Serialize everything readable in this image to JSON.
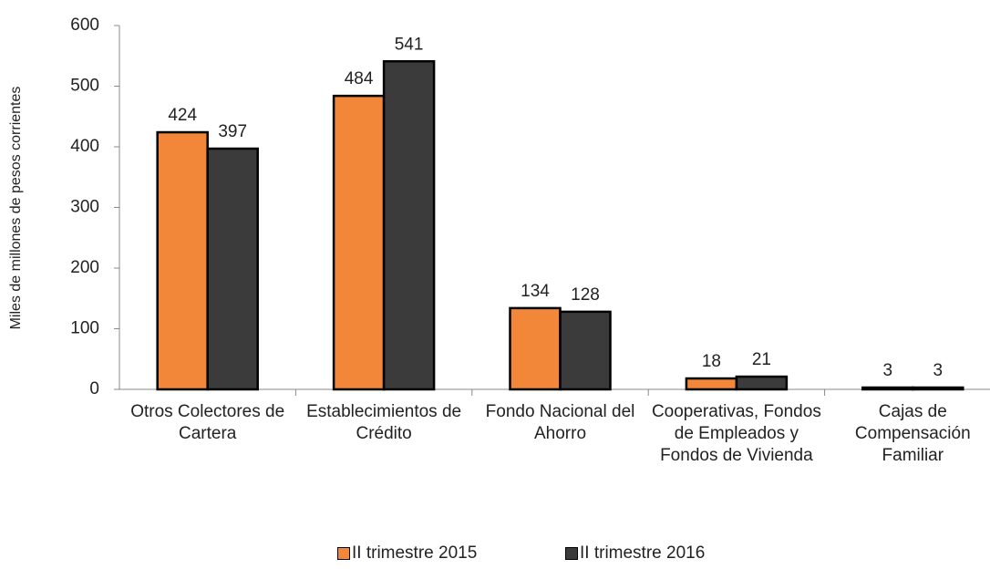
{
  "chart_data": {
    "type": "bar",
    "y_label": "Miles de millones de pesos corrientes",
    "categories": [
      "Otros Colectores de Cartera",
      "Establecimientos de Crédito",
      "Fondo Nacional del Ahorro",
      "Cooperativas, Fondos de Empleados y Fondos de Vivienda",
      "Cajas de Compensación Familiar"
    ],
    "series": [
      {
        "name": "II trimestre 2015",
        "color": "#f2873a",
        "values": [
          424,
          484,
          134,
          18,
          3
        ]
      },
      {
        "name": "II trimestre 2016",
        "color": "#3b3b3b",
        "values": [
          397,
          541,
          128,
          21,
          3
        ]
      }
    ],
    "ylim": [
      0,
      600
    ],
    "yticks": [
      0,
      100,
      200,
      300,
      400,
      500,
      600
    ],
    "legend": "bottom"
  }
}
